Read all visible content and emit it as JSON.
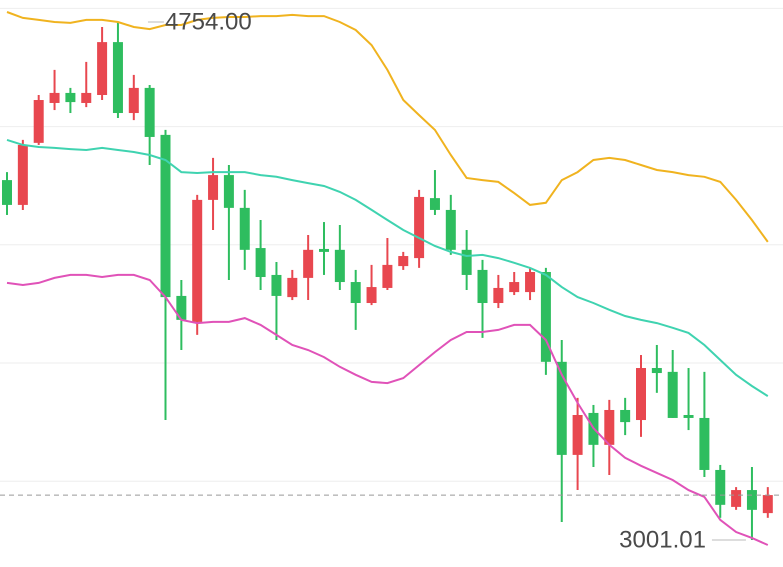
{
  "chart_data": {
    "type": "candlestick",
    "ylim": [
      2909.6,
      4828.5
    ],
    "ygrid": [
      3200,
      3600,
      4000,
      4400,
      4800
    ],
    "grid": true,
    "up_color": "#e8474f",
    "down_color": "#2ebd5f",
    "candles": {
      "open": [
        4219,
        4135,
        4345,
        4480,
        4514,
        4480,
        4507,
        4686,
        4446,
        4531,
        4372,
        3827,
        3739,
        4152,
        4236,
        4125,
        3989,
        3898,
        3823,
        3888,
        3986,
        3983,
        3874,
        3803,
        3854,
        3928,
        3955,
        4158,
        4118,
        3983,
        3915,
        3803,
        3840,
        3840,
        3908,
        3604,
        3289,
        3431,
        3323,
        3441,
        3407,
        3583,
        3570,
        3424,
        3414,
        3238,
        3113,
        3170,
        3092
      ],
      "high": [
        4246,
        4355,
        4507,
        4592,
        4531,
        4619,
        4737,
        4754,
        4575,
        4541,
        4389,
        3881,
        4169,
        4294,
        4270,
        4186,
        4084,
        3942,
        3915,
        4033,
        4077,
        4067,
        3915,
        3932,
        4023,
        3976,
        4186,
        4253,
        4169,
        4050,
        3949,
        3898,
        3908,
        3922,
        3922,
        3678,
        3482,
        3458,
        3475,
        3482,
        3627,
        3661,
        3644,
        3583,
        3570,
        3255,
        3180,
        3248,
        3180
      ],
      "low": [
        4101,
        4118,
        4338,
        4456,
        4446,
        4466,
        4490,
        4429,
        4422,
        4270,
        3407,
        3644,
        3695,
        4050,
        3881,
        3915,
        3847,
        3678,
        3813,
        3813,
        3898,
        3847,
        3712,
        3796,
        3847,
        3915,
        3922,
        4101,
        3966,
        3847,
        3685,
        3786,
        3830,
        3813,
        3560,
        3062,
        3170,
        3248,
        3221,
        3356,
        3350,
        3499,
        3414,
        3373,
        3214,
        3076,
        3103,
        3001.01,
        3076
      ],
      "close": [
        4135,
        4338,
        4490,
        4514,
        4483,
        4514,
        4686,
        4446,
        4531,
        4365,
        3823,
        3746,
        4152,
        4236,
        4125,
        3983,
        3891,
        3827,
        3888,
        3983,
        3976,
        3874,
        3803,
        3857,
        3932,
        3962,
        4162,
        4118,
        3983,
        3898,
        3803,
        3854,
        3874,
        3908,
        3604,
        3289,
        3424,
        3323,
        3441,
        3400,
        3583,
        3566,
        3414,
        3414,
        3238,
        3120,
        3170,
        3103,
        3153
      ]
    },
    "bands": [
      {
        "color": "#f0b31f",
        "values": [
          4788,
          4768,
          4761,
          4754,
          4751,
          4761,
          4761,
          4754,
          4737,
          4730,
          4744,
          4744,
          4761,
          4768,
          4771,
          4771,
          4774,
          4774,
          4778,
          4774,
          4774,
          4754,
          4727,
          4676,
          4592,
          4490,
          4439,
          4389,
          4304,
          4226,
          4219,
          4213,
          4175,
          4135,
          4142,
          4219,
          4246,
          4287,
          4294,
          4287,
          4270,
          4253,
          4246,
          4236,
          4230,
          4213,
          4152,
          4084,
          4010
        ]
      },
      {
        "color": "#3fd3b0",
        "values": [
          4355,
          4338,
          4331,
          4328,
          4324,
          4321,
          4328,
          4321,
          4314,
          4304,
          4287,
          4246,
          4243,
          4246,
          4246,
          4246,
          4236,
          4230,
          4219,
          4209,
          4199,
          4179,
          4152,
          4118,
          4084,
          4050,
          4023,
          3996,
          3976,
          3962,
          3966,
          3955,
          3939,
          3922,
          3898,
          3857,
          3823,
          3803,
          3780,
          3759,
          3746,
          3735,
          3719,
          3702,
          3661,
          3610,
          3560,
          3522,
          3488
        ]
      },
      {
        "color": "#e052b8",
        "values": [
          3871,
          3864,
          3871,
          3888,
          3898,
          3898,
          3891,
          3898,
          3898,
          3881,
          3823,
          3746,
          3735,
          3739,
          3739,
          3752,
          3729,
          3695,
          3661,
          3644,
          3620,
          3587,
          3560,
          3536,
          3532,
          3549,
          3593,
          3637,
          3678,
          3705,
          3705,
          3712,
          3729,
          3729,
          3678,
          3560,
          3465,
          3380,
          3323,
          3279,
          3252,
          3228,
          3204,
          3170,
          3147,
          3069,
          3028,
          3008,
          2984
        ]
      }
    ],
    "high_label": "4754.00",
    "low_label": "3001.01"
  }
}
